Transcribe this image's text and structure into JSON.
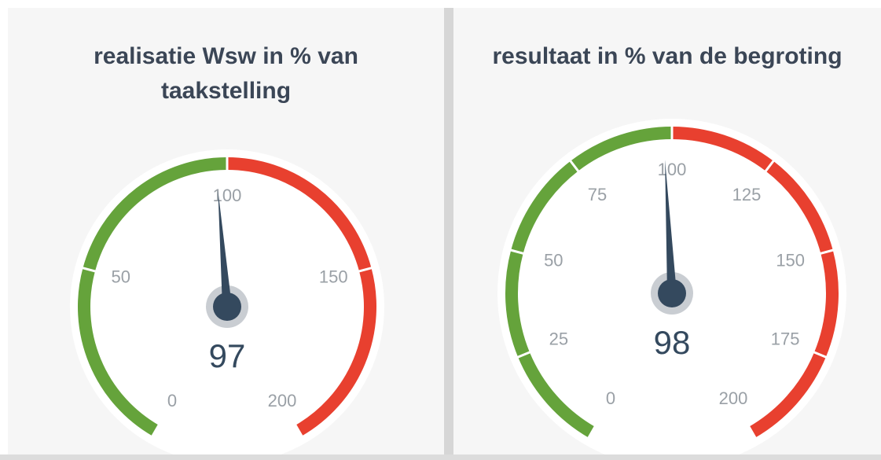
{
  "chart_data": [
    {
      "type": "gauge",
      "title": "realisatie Wsw in % van taakstelling",
      "value": 97,
      "ylim": [
        0,
        200
      ],
      "yticks": [
        0,
        50,
        100,
        150,
        200
      ],
      "bands": [
        {
          "from": 0,
          "to": 100,
          "color": "#65a33b"
        },
        {
          "from": 100,
          "to": 200,
          "color": "#e8402f"
        }
      ],
      "needle_color": "#34495e"
    },
    {
      "type": "gauge",
      "title": "resultaat in % van de begroting",
      "value": 98,
      "ylim": [
        0,
        200
      ],
      "yticks": [
        0,
        25,
        50,
        75,
        100,
        125,
        150,
        175,
        200
      ],
      "bands": [
        {
          "from": 0,
          "to": 100,
          "color": "#65a33b"
        },
        {
          "from": 100,
          "to": 200,
          "color": "#e8402f"
        }
      ],
      "needle_color": "#34495e"
    }
  ]
}
